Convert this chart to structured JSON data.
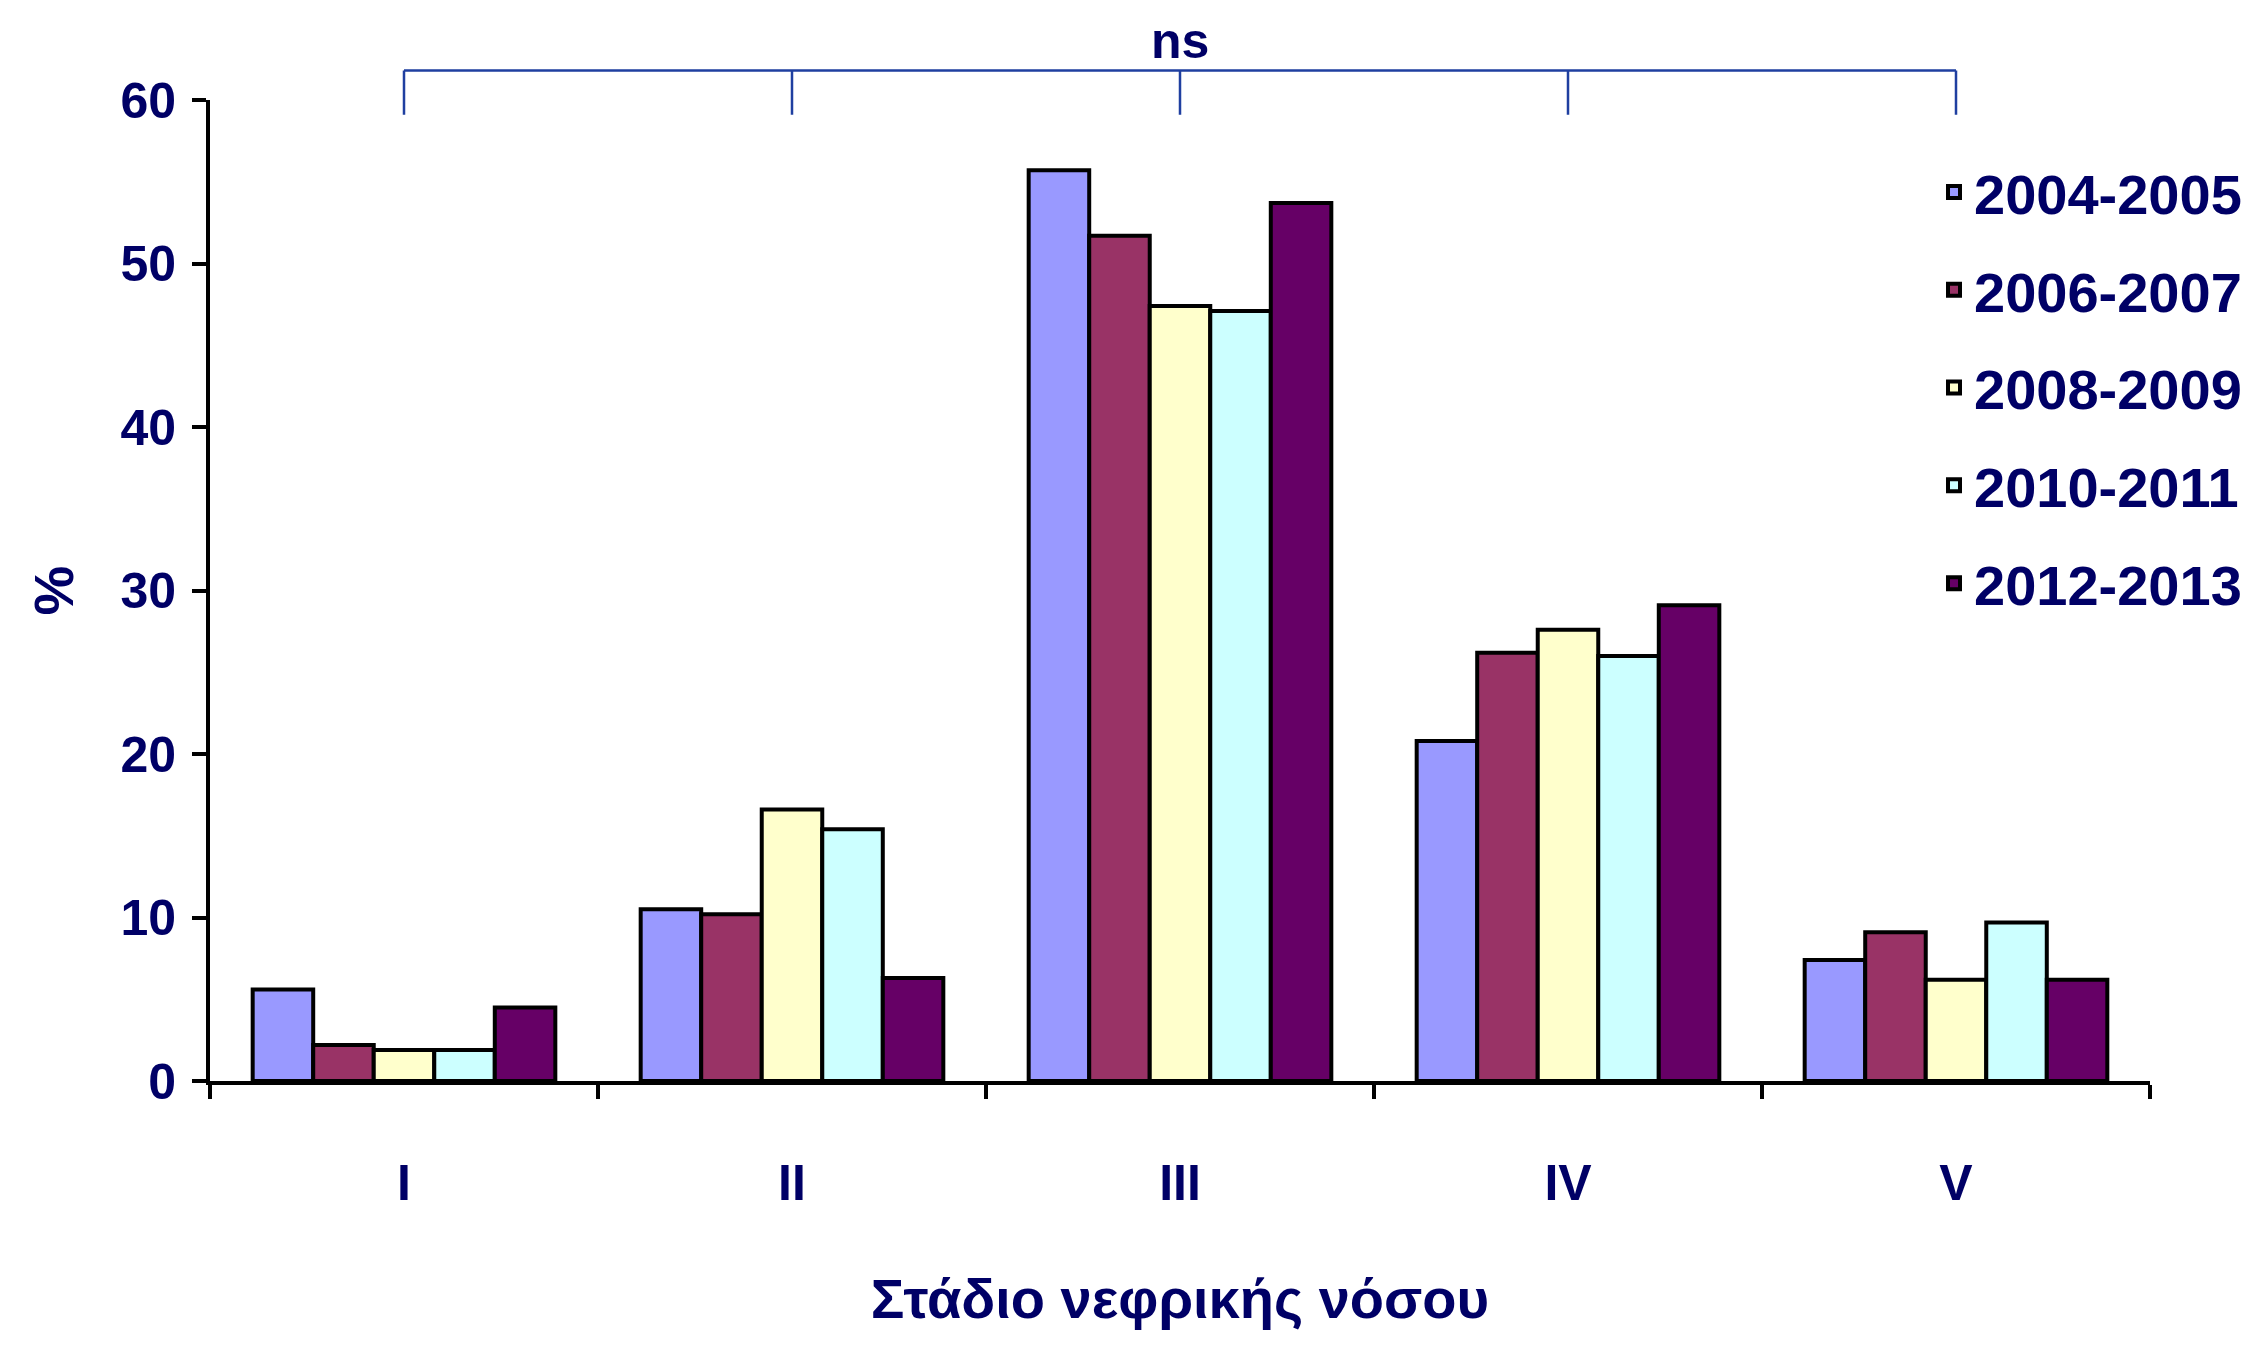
{
  "chart_data": {
    "type": "bar",
    "xlabel": "Στάδιο νεφρικής νόσου",
    "ylabel": "%",
    "categories": [
      "I",
      "II",
      "III",
      "IV",
      "V"
    ],
    "series": [
      {
        "name": "2004-2005",
        "color": "#9999ff",
        "values": [
          5.6,
          10.5,
          55.7,
          20.8,
          7.4
        ]
      },
      {
        "name": "2006-2007",
        "color": "#993366",
        "values": [
          2.2,
          10.2,
          51.7,
          26.2,
          9.1
        ]
      },
      {
        "name": "2008-2009",
        "color": "#ffffcc",
        "values": [
          1.9,
          16.6,
          47.4,
          27.6,
          6.2
        ]
      },
      {
        "name": "2010-2011",
        "color": "#ccffff",
        "values": [
          1.9,
          15.4,
          47.1,
          26.0,
          9.7
        ]
      },
      {
        "name": "2012-2013",
        "color": "#660066",
        "values": [
          4.5,
          6.3,
          53.7,
          29.1,
          6.2
        ]
      }
    ],
    "ylim": [
      0,
      60
    ],
    "yticks": [
      0,
      10,
      20,
      30,
      40,
      50,
      60
    ],
    "grid": false,
    "legend": "top right",
    "annotations": [
      "ns"
    ]
  }
}
